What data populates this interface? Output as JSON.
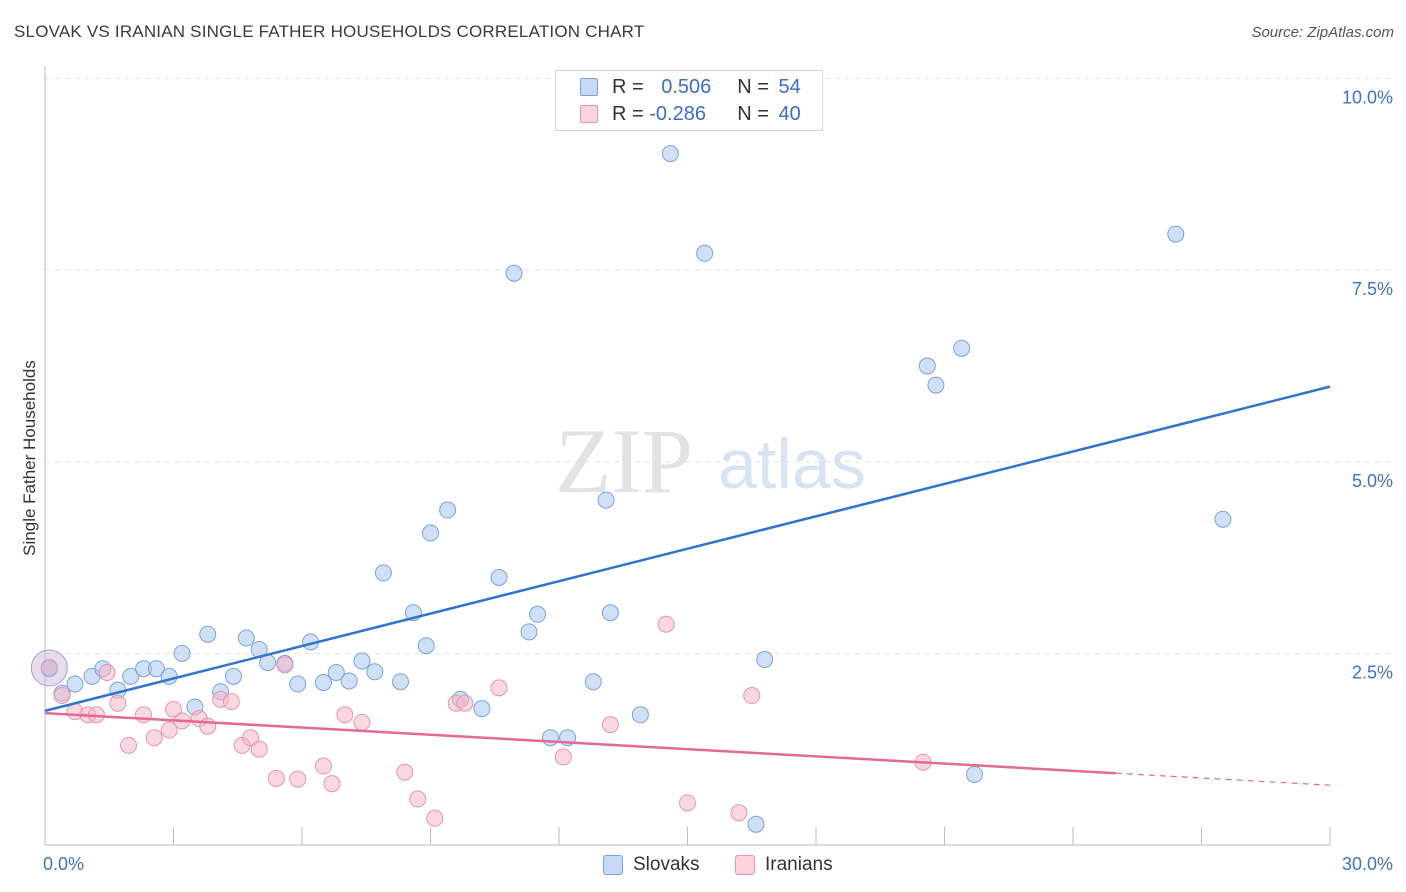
{
  "title": "SLOVAK VS IRANIAN SINGLE FATHER HOUSEHOLDS CORRELATION CHART",
  "source": "Source: ZipAtlas.com",
  "watermark": {
    "zip": "ZIP",
    "atlas": "atlas"
  },
  "legend": {
    "rows": [
      {
        "r_label": "R = ",
        "r_value": "0.506",
        "n_label": "N = ",
        "n_value": "54",
        "color": "#a9c6ee"
      },
      {
        "r_label": "R = ",
        "r_value": "-0.286",
        "n_label": "N = ",
        "n_value": "40",
        "color": "#f5b8c9"
      }
    ]
  },
  "bottom_legend": [
    {
      "label": "Slovaks",
      "color": "#a9c6ee"
    },
    {
      "label": "Iranians",
      "color": "#f5b8c9"
    }
  ],
  "chart_data": {
    "type": "scatter",
    "title": "SLOVAK VS IRANIAN SINGLE FATHER HOUSEHOLDS CORRELATION CHART",
    "xlabel": "",
    "ylabel": "Single Father Households",
    "xlim": [
      0,
      30
    ],
    "ylim": [
      0,
      10.3
    ],
    "x_tick_labels": [
      "0.0%",
      "30.0%"
    ],
    "y_ticks": [
      2.5,
      5.0,
      7.5,
      10.0
    ],
    "y_tick_labels": [
      "2.5%",
      "5.0%",
      "7.5%",
      "10.0%"
    ],
    "grid": true,
    "series": [
      {
        "name": "Slovaks",
        "color": "#a9c6ee",
        "stroke": "#7aa3dd",
        "trend_color": "#2f74cf",
        "trend": {
          "x0": 0,
          "y0": 1.75,
          "x1": 30,
          "y1": 5.98
        },
        "points": [
          [
            0.1,
            2.3
          ],
          [
            0.4,
            1.98
          ],
          [
            0.7,
            2.1
          ],
          [
            1.1,
            2.2
          ],
          [
            1.35,
            2.3
          ],
          [
            1.7,
            2.02
          ],
          [
            2.0,
            2.2
          ],
          [
            2.3,
            2.3
          ],
          [
            2.6,
            2.3
          ],
          [
            2.9,
            2.2
          ],
          [
            3.2,
            2.5
          ],
          [
            3.5,
            1.8
          ],
          [
            3.8,
            2.75
          ],
          [
            4.1,
            2.0
          ],
          [
            4.4,
            2.2
          ],
          [
            4.7,
            2.7
          ],
          [
            5.0,
            2.55
          ],
          [
            5.2,
            2.38
          ],
          [
            5.6,
            2.37
          ],
          [
            5.9,
            2.1
          ],
          [
            6.2,
            2.65
          ],
          [
            6.5,
            2.12
          ],
          [
            6.8,
            2.25
          ],
          [
            7.1,
            2.14
          ],
          [
            7.4,
            2.4
          ],
          [
            7.7,
            2.26
          ],
          [
            7.9,
            3.55
          ],
          [
            8.3,
            2.13
          ],
          [
            8.6,
            3.03
          ],
          [
            8.9,
            2.6
          ],
          [
            9.0,
            4.07
          ],
          [
            9.4,
            4.37
          ],
          [
            9.7,
            1.9
          ],
          [
            10.2,
            1.78
          ],
          [
            10.6,
            3.49
          ],
          [
            10.95,
            7.46
          ],
          [
            11.3,
            2.78
          ],
          [
            11.5,
            3.01
          ],
          [
            11.8,
            1.4
          ],
          [
            12.2,
            1.4
          ],
          [
            12.8,
            2.13
          ],
          [
            13.1,
            4.5
          ],
          [
            13.2,
            3.03
          ],
          [
            13.9,
            1.7
          ],
          [
            14.6,
            9.02
          ],
          [
            15.4,
            7.72
          ],
          [
            16.6,
            0.27
          ],
          [
            16.8,
            2.42
          ],
          [
            20.6,
            6.25
          ],
          [
            20.8,
            6.0
          ],
          [
            21.4,
            6.48
          ],
          [
            21.7,
            0.92
          ],
          [
            26.4,
            7.97
          ],
          [
            27.5,
            4.25
          ]
        ]
      },
      {
        "name": "Iranians",
        "color": "#f5b8c9",
        "stroke": "#e895ad",
        "trend_color": "#e36a94",
        "trend": {
          "x0": 0,
          "y0": 1.72,
          "x1": 30,
          "y1": 0.78,
          "solid_until": 25.0
        },
        "points": [
          [
            0.1,
            2.32
          ],
          [
            0.4,
            1.95
          ],
          [
            0.7,
            1.74
          ],
          [
            1.0,
            1.7
          ],
          [
            1.2,
            1.7
          ],
          [
            1.45,
            2.25
          ],
          [
            1.7,
            1.85
          ],
          [
            1.95,
            1.3
          ],
          [
            2.3,
            1.7
          ],
          [
            2.55,
            1.4
          ],
          [
            2.9,
            1.5
          ],
          [
            3.0,
            1.77
          ],
          [
            3.2,
            1.62
          ],
          [
            3.6,
            1.65
          ],
          [
            3.8,
            1.55
          ],
          [
            4.1,
            1.9
          ],
          [
            4.35,
            1.87
          ],
          [
            4.6,
            1.3
          ],
          [
            4.8,
            1.4
          ],
          [
            5.0,
            1.25
          ],
          [
            5.4,
            0.87
          ],
          [
            5.6,
            2.35
          ],
          [
            5.9,
            0.86
          ],
          [
            6.5,
            1.03
          ],
          [
            6.7,
            0.8
          ],
          [
            7.0,
            1.7
          ],
          [
            7.4,
            1.6
          ],
          [
            8.4,
            0.95
          ],
          [
            8.7,
            0.6
          ],
          [
            9.1,
            0.35
          ],
          [
            9.6,
            1.85
          ],
          [
            9.8,
            1.85
          ],
          [
            10.6,
            2.05
          ],
          [
            12.1,
            1.15
          ],
          [
            13.2,
            1.57
          ],
          [
            14.5,
            2.88
          ],
          [
            15.0,
            0.55
          ],
          [
            16.2,
            0.42
          ],
          [
            16.5,
            1.95
          ],
          [
            20.5,
            1.08
          ]
        ]
      }
    ]
  }
}
